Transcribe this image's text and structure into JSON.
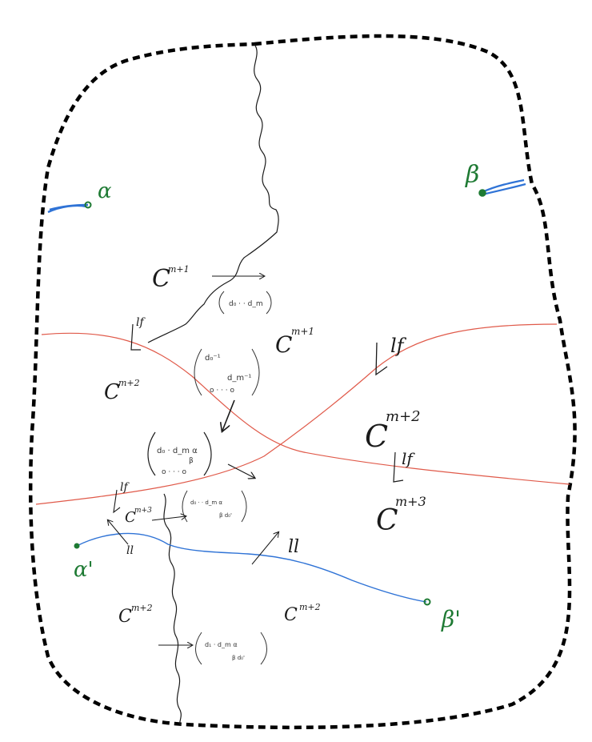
{
  "colors": {
    "boundary": "#000000",
    "red_curve": "#e05a4a",
    "blue_curve": "#2f73d6",
    "green": "#1e7a33",
    "ink": "#1a1a1a"
  },
  "points": {
    "alpha": "α",
    "beta": "β",
    "alpha_prime": "α'",
    "beta_prime": "β'"
  },
  "regions": {
    "c_top_left": "C",
    "c_top_left_sup": "m+1",
    "c_mid_center": "C",
    "c_mid_center_sup": "m+1",
    "c_mid_left": "C",
    "c_mid_left_sup": "m+2",
    "c_right_mid": "C",
    "c_right_mid_sup": "m+2",
    "c_small": "C",
    "c_small_sup": "m+3",
    "c_right_low": "C",
    "c_right_low_sup": "m+3",
    "c_bottom_left": "C",
    "c_bottom_left_sup": "m+2",
    "c_bottom_right": "C",
    "c_bottom_right_sup": "m+2"
  },
  "labels": {
    "lf_top_left": "lf",
    "lf_right": "lf",
    "lf_right_low": "lf",
    "lf_left_low": "lf",
    "ll_left": "ll",
    "ll_right": "ll"
  },
  "matrices": {
    "m1_row1": "d₀ · · d_m",
    "m2_row1": "d₀⁻¹",
    "m2_row2": "d_m⁻¹",
    "m2_row3": "o · · · o",
    "m3_row1": "d₀ · d_m α",
    "m3_row2": "β",
    "m3_row3": "o · · · o",
    "m4_row1": "d₀ · · d_m α",
    "m4_row2": "β  d₀'",
    "m5_row1": "d₁ · d_m  α",
    "m5_row2": "β   d₀'"
  }
}
